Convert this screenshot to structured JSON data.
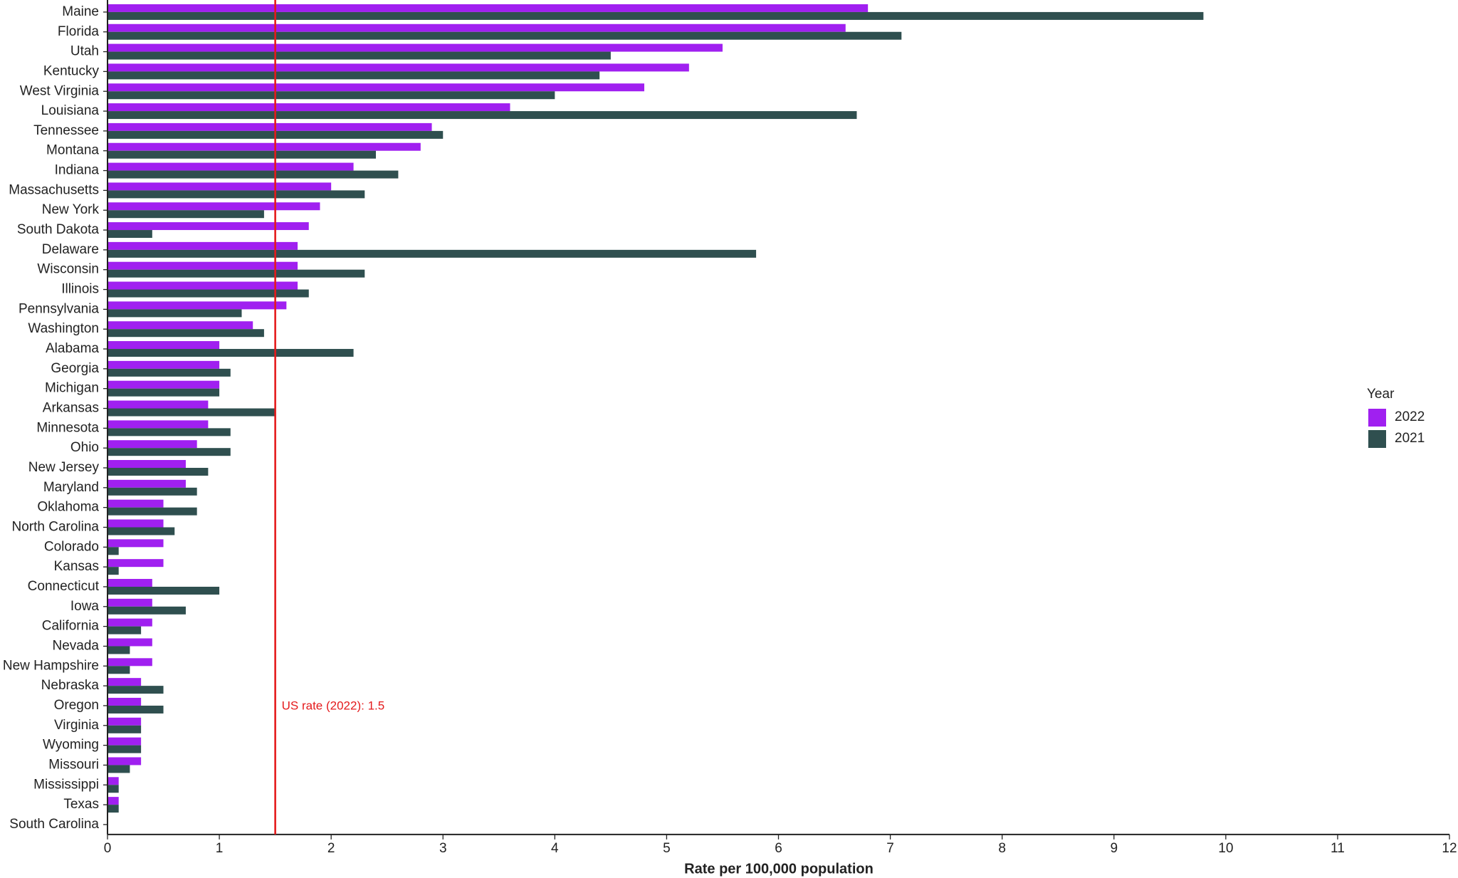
{
  "chart_data": {
    "type": "bar",
    "orientation": "horizontal",
    "x_label": "Rate per 100,000 population",
    "categories": [
      "Maine",
      "Florida",
      "Utah",
      "Kentucky",
      "West Virginia",
      "Louisiana",
      "Tennessee",
      "Montana",
      "Indiana",
      "Massachusetts",
      "New York",
      "South Dakota",
      "Delaware",
      "Wisconsin",
      "Illinois",
      "Pennsylvania",
      "Washington",
      "Alabama",
      "Georgia",
      "Michigan",
      "Arkansas",
      "Minnesota",
      "Ohio",
      "New Jersey",
      "Maryland",
      "Oklahoma",
      "North Carolina",
      "Colorado",
      "Kansas",
      "Connecticut",
      "Iowa",
      "California",
      "Nevada",
      "New Hampshire",
      "Nebraska",
      "Oregon",
      "Virginia",
      "Wyoming",
      "Missouri",
      "Mississippi",
      "Texas",
      "South Carolina"
    ],
    "series": [
      {
        "name": "2022",
        "color": "#a020f0",
        "values": [
          6.8,
          6.6,
          5.5,
          5.2,
          4.8,
          3.6,
          2.9,
          2.8,
          2.2,
          2.0,
          1.9,
          1.8,
          1.7,
          1.7,
          1.7,
          1.6,
          1.3,
          1.0,
          1.0,
          1.0,
          0.9,
          0.9,
          0.8,
          0.7,
          0.7,
          0.5,
          0.5,
          0.5,
          0.5,
          0.4,
          0.4,
          0.4,
          0.4,
          0.4,
          0.3,
          0.3,
          0.3,
          0.3,
          0.3,
          0.1,
          0.1,
          0
        ]
      },
      {
        "name": "2021",
        "color": "#2f4f4f",
        "values": [
          9.8,
          7.1,
          4.5,
          4.4,
          4.0,
          6.7,
          3.0,
          2.4,
          2.6,
          2.3,
          1.4,
          0.4,
          5.8,
          2.3,
          1.8,
          1.2,
          1.4,
          2.2,
          1.1,
          1.0,
          1.5,
          1.1,
          1.1,
          0.9,
          0.8,
          0.8,
          0.6,
          0.1,
          0.1,
          1.0,
          0.7,
          0.3,
          0.2,
          0.2,
          0.5,
          0.5,
          0.3,
          0.3,
          0.2,
          0.1,
          0.1,
          0
        ]
      }
    ],
    "xlim": [
      0,
      12
    ],
    "xticks": [
      0,
      1,
      2,
      3,
      4,
      5,
      6,
      7,
      8,
      9,
      10,
      11,
      12
    ],
    "reference_line": {
      "value": 1.5,
      "label": "US rate (2022): 1.5",
      "color": "#e41a1c"
    },
    "legend_title": "Year",
    "legend_position": "right"
  }
}
